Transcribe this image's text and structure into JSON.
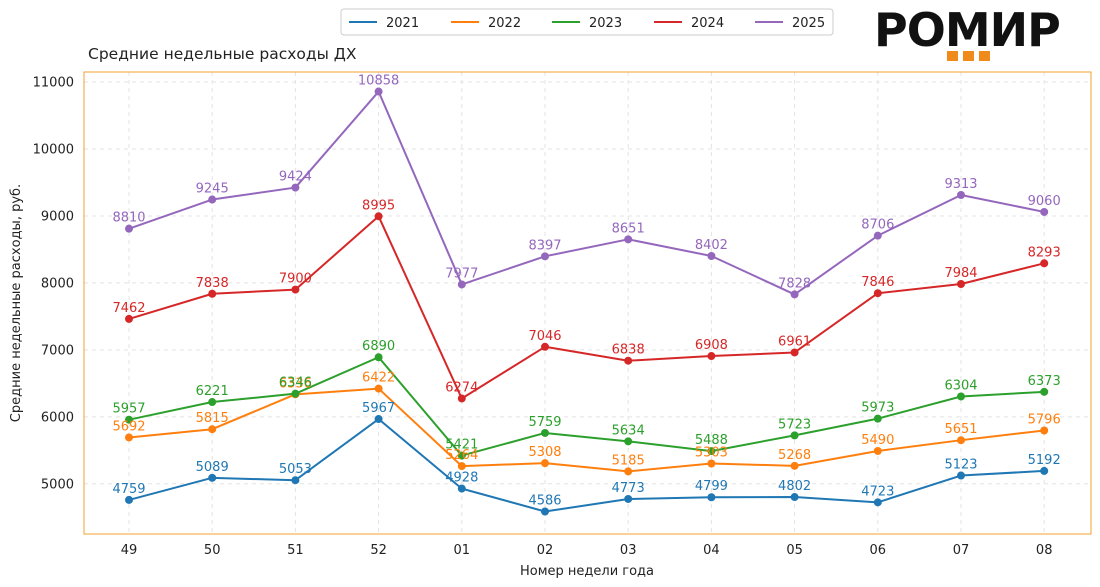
{
  "logo": {
    "text": "РОМИР",
    "accent": "#f08a1c"
  },
  "chart_data": {
    "type": "line",
    "title": "Средние недельные расходы ДХ",
    "xlabel": "Номер недели года",
    "ylabel": "Средние недельные расходы, руб.",
    "categories": [
      "49",
      "50",
      "51",
      "52",
      "01",
      "02",
      "03",
      "04",
      "05",
      "06",
      "07",
      "08"
    ],
    "ylim": [
      4250,
      11150
    ],
    "yticks": [
      5000,
      6000,
      7000,
      8000,
      9000,
      10000,
      11000
    ],
    "grid": true,
    "legend_position": "top-center",
    "frame_color": "#f0a030",
    "series": [
      {
        "name": "2021",
        "color": "#1f77b4",
        "values": [
          4759,
          5089,
          5053,
          5967,
          4928,
          4586,
          4773,
          4799,
          4802,
          4723,
          5123,
          5192
        ]
      },
      {
        "name": "2022",
        "color": "#ff7f0e",
        "values": [
          5692,
          5815,
          6336,
          6422,
          5264,
          5308,
          5185,
          5303,
          5268,
          5490,
          5651,
          5796
        ]
      },
      {
        "name": "2023",
        "color": "#2ca02c",
        "values": [
          5957,
          6221,
          6346,
          6890,
          5421,
          5759,
          5634,
          5488,
          5723,
          5973,
          6304,
          6373
        ]
      },
      {
        "name": "2024",
        "color": "#d62728",
        "values": [
          7462,
          7838,
          7900,
          8995,
          6274,
          7046,
          6838,
          6908,
          6961,
          7846,
          7984,
          8293
        ]
      },
      {
        "name": "2025",
        "color": "#9467bd",
        "values": [
          8810,
          9245,
          9424,
          10858,
          7977,
          8397,
          8651,
          8402,
          7828,
          8706,
          9313,
          9060
        ]
      }
    ]
  }
}
